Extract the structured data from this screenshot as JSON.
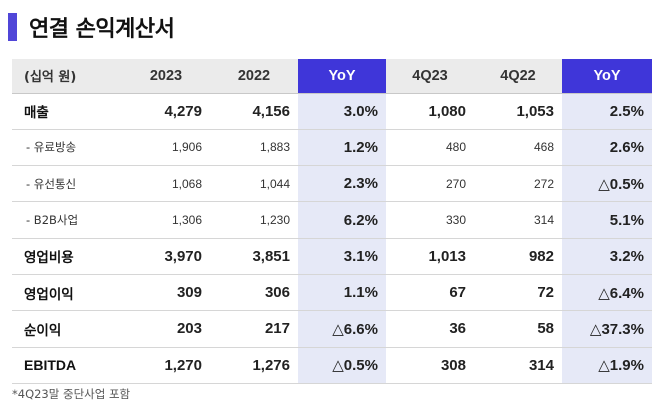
{
  "title": "연결 손익계산서",
  "table": {
    "header": [
      "(십억 원)",
      "2023",
      "2022",
      "YoY",
      "4Q23",
      "4Q22",
      "YoY"
    ],
    "rows": [
      {
        "label": "매출",
        "values": [
          "4,279",
          "4,156",
          "3.0%",
          "1,080",
          "1,053",
          "2.5%"
        ]
      },
      {
        "label": "- 유료방송",
        "values": [
          "1,906",
          "1,883",
          "1.2%",
          "480",
          "468",
          "2.6%"
        ]
      },
      {
        "label": "- 유선통신",
        "values": [
          "1,068",
          "1,044",
          "2.3%",
          "270",
          "272",
          "△0.5%"
        ]
      },
      {
        "label": "- B2B사업",
        "values": [
          "1,306",
          "1,230",
          "6.2%",
          "330",
          "314",
          "5.1%"
        ]
      },
      {
        "label": "영업비용",
        "values": [
          "3,970",
          "3,851",
          "3.1%",
          "1,013",
          "982",
          "3.2%"
        ]
      },
      {
        "label": "영업이익",
        "values": [
          "309",
          "306",
          "1.1%",
          "67",
          "72",
          "△6.4%"
        ]
      },
      {
        "label": "순이익",
        "values": [
          "203",
          "217",
          "△6.6%",
          "36",
          "58",
          "△37.3%"
        ]
      },
      {
        "label": "EBITDA",
        "values": [
          "1,270",
          "1,276",
          "△0.5%",
          "308",
          "314",
          "△1.9%"
        ]
      }
    ]
  },
  "footnote": "*4Q23말 중단사업 포함",
  "colors": {
    "accent": "#5046d8",
    "yoy_header": "#3f36d9",
    "yoy_cell": "#e6e9f7",
    "header_bg": "#ebebeb"
  }
}
